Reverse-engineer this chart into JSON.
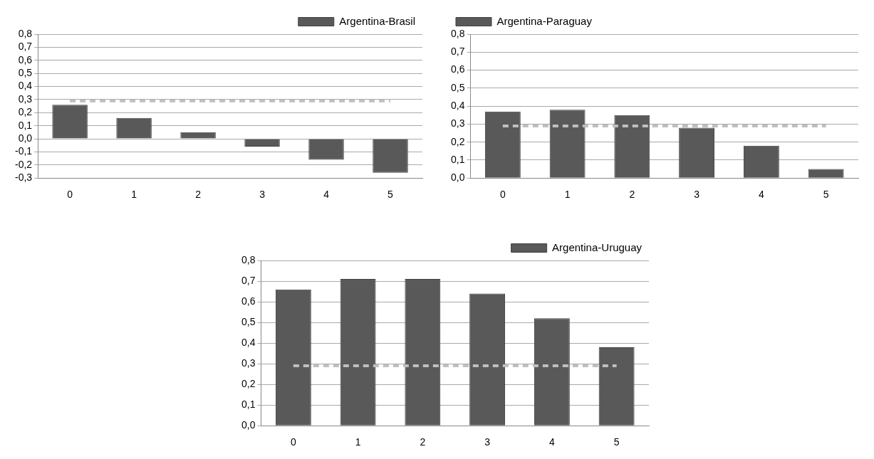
{
  "chart_data": [
    {
      "type": "bar",
      "categories": [
        "0",
        "1",
        "2",
        "3",
        "4",
        "5"
      ],
      "series": [
        {
          "name": "Argentina-Brasil",
          "color": "#595959",
          "values": [
            0.26,
            0.16,
            0.05,
            -0.06,
            -0.16,
            -0.26
          ]
        },
        {
          "type": "line",
          "color": "#bfbfbf",
          "line_style": "dashed",
          "values": [
            0.29,
            0.29,
            0.29,
            0.29,
            0.29,
            0.29
          ]
        }
      ],
      "ylim": [
        -0.3,
        0.8
      ],
      "yticks": [
        {
          "value": -0.3,
          "label": "-0,3"
        },
        {
          "value": -0.2,
          "label": "-0,2"
        },
        {
          "value": -0.1,
          "label": "-0,1"
        },
        {
          "value": 0,
          "label": "0,0"
        },
        {
          "value": 0.1,
          "label": "0,1"
        },
        {
          "value": 0.2,
          "label": "0,2"
        },
        {
          "value": 0.3,
          "label": "0,3"
        },
        {
          "value": 0.4,
          "label": "0,4"
        },
        {
          "value": 0.5,
          "label": "0,5"
        },
        {
          "value": 0.6,
          "label": "0,6"
        },
        {
          "value": 0.7,
          "label": "0,7"
        },
        {
          "value": 0.8,
          "label": "0,8"
        }
      ],
      "grid": "y",
      "legend": "top right",
      "marker": "none"
    },
    {
      "type": "bar",
      "categories": [
        "0",
        "1",
        "2",
        "3",
        "4",
        "5"
      ],
      "series": [
        {
          "name": "Argentina-Paraguay",
          "color": "#595959",
          "values": [
            0.37,
            0.38,
            0.35,
            0.28,
            0.18,
            0.05
          ]
        },
        {
          "type": "line",
          "color": "#bfbfbf",
          "line_style": "dashed",
          "values": [
            0.29,
            0.29,
            0.29,
            0.29,
            0.29,
            0.29
          ]
        }
      ],
      "ylim": [
        0,
        0.8
      ],
      "yticks": [
        {
          "value": 0,
          "label": "0,0"
        },
        {
          "value": 0.1,
          "label": "0,1"
        },
        {
          "value": 0.2,
          "label": "0,2"
        },
        {
          "value": 0.3,
          "label": "0,3"
        },
        {
          "value": 0.4,
          "label": "0,4"
        },
        {
          "value": 0.5,
          "label": "0,5"
        },
        {
          "value": 0.6,
          "label": "0,6"
        },
        {
          "value": 0.7,
          "label": "0,7"
        },
        {
          "value": 0.8,
          "label": "0,8"
        }
      ],
      "grid": "y",
      "legend": "top left",
      "marker": "none"
    },
    {
      "type": "bar",
      "categories": [
        "0",
        "1",
        "2",
        "3",
        "4",
        "5"
      ],
      "series": [
        {
          "name": "Argentina-Uruguay",
          "color": "#595959",
          "values": [
            0.66,
            0.71,
            0.71,
            0.64,
            0.52,
            0.38
          ]
        },
        {
          "type": "line",
          "color": "#bfbfbf",
          "line_style": "dashed",
          "values": [
            0.29,
            0.29,
            0.29,
            0.29,
            0.29,
            0.29
          ]
        }
      ],
      "ylim": [
        0,
        0.8
      ],
      "yticks": [
        {
          "value": 0,
          "label": "0,0"
        },
        {
          "value": 0.1,
          "label": "0,1"
        },
        {
          "value": 0.2,
          "label": "0,2"
        },
        {
          "value": 0.3,
          "label": "0,3"
        },
        {
          "value": 0.4,
          "label": "0,4"
        },
        {
          "value": 0.5,
          "label": "0,5"
        },
        {
          "value": 0.6,
          "label": "0,6"
        },
        {
          "value": 0.7,
          "label": "0,7"
        },
        {
          "value": 0.8,
          "label": "0,8"
        }
      ],
      "grid": "y",
      "legend": "top right",
      "marker": "none"
    }
  ]
}
